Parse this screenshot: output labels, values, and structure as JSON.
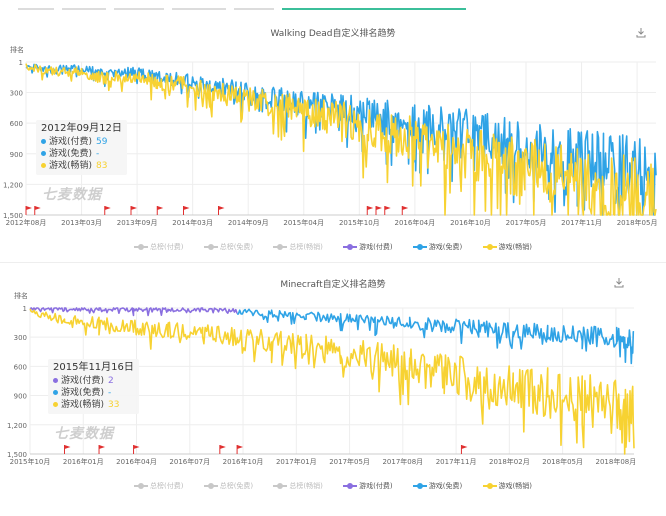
{
  "colors": {
    "paid_purple": "#8a6fe0",
    "free_blue": "#2fa3e6",
    "grossing_yellow": "#f7d232",
    "disabled_grey": "#c8c8c8",
    "grid": "#eeeeee",
    "flag_red": "#e03030",
    "tab_active": "#3bbf9a"
  },
  "tabs": [
    "",
    "",
    "",
    "",
    "",
    ""
  ],
  "charts": [
    {
      "title": "Walking Dead自定义排名趋势",
      "ylabel": "排名",
      "watermark": "七麦数据",
      "tooltip": {
        "date": "2012年09月12日",
        "rows": [
          {
            "label": "游戏(付费)",
            "value": "59",
            "color": "#2fa3e6"
          },
          {
            "label": "游戏(免费)",
            "value": "-",
            "color": "#2fa3e6"
          },
          {
            "label": "游戏(畅销)",
            "value": "83",
            "color": "#f7d232"
          }
        ]
      },
      "legend": [
        {
          "label": "总榜(付费)",
          "color": "#c8c8c8",
          "active": false
        },
        {
          "label": "总榜(免费)",
          "color": "#c8c8c8",
          "active": false
        },
        {
          "label": "总榜(畅销)",
          "color": "#c8c8c8",
          "active": false
        },
        {
          "label": "游戏(付费)",
          "color": "#8a6fe0",
          "active": true
        },
        {
          "label": "游戏(免费)",
          "color": "#2fa3e6",
          "active": true
        },
        {
          "label": "游戏(畅销)",
          "color": "#f7d232",
          "active": true
        }
      ]
    },
    {
      "title": "Minecraft自定义排名趋势",
      "ylabel": "排名",
      "watermark": "七麦数据",
      "tooltip": {
        "date": "2015年11月16日",
        "rows": [
          {
            "label": "游戏(付费)",
            "value": "2",
            "color": "#8a6fe0"
          },
          {
            "label": "游戏(免费)",
            "value": "-",
            "color": "#2fa3e6"
          },
          {
            "label": "游戏(畅销)",
            "value": "33",
            "color": "#f7d232"
          }
        ]
      },
      "legend": [
        {
          "label": "总榜(付费)",
          "color": "#c8c8c8",
          "active": false
        },
        {
          "label": "总榜(免费)",
          "color": "#c8c8c8",
          "active": false
        },
        {
          "label": "总榜(畅销)",
          "color": "#c8c8c8",
          "active": false
        },
        {
          "label": "游戏(付费)",
          "color": "#8a6fe0",
          "active": true
        },
        {
          "label": "游戏(免费)",
          "color": "#2fa3e6",
          "active": true
        },
        {
          "label": "游戏(畅销)",
          "color": "#f7d232",
          "active": true
        }
      ]
    }
  ],
  "chart_data": [
    {
      "type": "line",
      "title": "Walking Dead自定义排名趋势",
      "ylabel": "排名",
      "y_inverted": true,
      "ylim": [
        1,
        1500
      ],
      "y_ticks": [
        "1",
        "300",
        "600",
        "900",
        "1,200",
        "1,500"
      ],
      "y_tick_values": [
        1,
        300,
        600,
        900,
        1200,
        1500
      ],
      "x_ticks": [
        "2012年08月",
        "2013年03月",
        "2013年09月",
        "2014年03月",
        "2014年09月",
        "2015年04月",
        "2015年10月",
        "2016年04月",
        "2016年10月",
        "2017年05月",
        "2017年11月",
        "2018年05月"
      ],
      "x": [
        "2012-08",
        "2012-11",
        "2013-02",
        "2013-05",
        "2013-08",
        "2013-11",
        "2014-02",
        "2014-05",
        "2014-08",
        "2014-11",
        "2015-02",
        "2015-05",
        "2015-08",
        "2015-11",
        "2016-02",
        "2016-05",
        "2016-08",
        "2016-11",
        "2017-02",
        "2017-05",
        "2017-08",
        "2017-11",
        "2018-02",
        "2018-05",
        "2018-08"
      ],
      "series": [
        {
          "name": "游戏(免费)",
          "color": "#2fa3e6",
          "values": [
            30,
            80,
            60,
            120,
            90,
            150,
            160,
            230,
            280,
            330,
            380,
            420,
            450,
            520,
            560,
            600,
            640,
            680,
            760,
            820,
            880,
            920,
            980,
            1020,
            1150
          ]
        },
        {
          "name": "游戏(畅销)",
          "color": "#f7d232",
          "values": [
            40,
            100,
            90,
            160,
            140,
            200,
            220,
            290,
            340,
            400,
            450,
            520,
            560,
            640,
            700,
            780,
            850,
            900,
            1000,
            1060,
            1120,
            1180,
            1250,
            1300,
            1380
          ]
        }
      ],
      "markers": [
        "2012-08",
        "2012-09",
        "2013-05",
        "2013-08",
        "2013-11",
        "2014-02",
        "2014-06",
        "2015-11",
        "2015-12",
        "2016-01",
        "2016-03"
      ],
      "grid": true,
      "legend_position": "bottom"
    },
    {
      "type": "line",
      "title": "Minecraft自定义排名趋势",
      "ylabel": "排名",
      "y_inverted": true,
      "ylim": [
        1,
        1500
      ],
      "y_ticks": [
        "1",
        "300",
        "600",
        "900",
        "1,200",
        "1,500"
      ],
      "y_tick_values": [
        1,
        300,
        600,
        900,
        1200,
        1500
      ],
      "x_ticks": [
        "2015年10月",
        "2016年01月",
        "2016年04月",
        "2016年07月",
        "2016年10月",
        "2017年01月",
        "2017年05月",
        "2017年08月",
        "2017年11月",
        "2018年02月",
        "2018年05月",
        "2018年08月"
      ],
      "x": [
        "2015-10",
        "2015-12",
        "2016-02",
        "2016-04",
        "2016-06",
        "2016-08",
        "2016-10",
        "2016-12",
        "2017-02",
        "2017-04",
        "2017-06",
        "2017-08",
        "2017-10",
        "2017-12",
        "2018-02",
        "2018-04",
        "2018-06",
        "2018-08",
        "2018-09"
      ],
      "series": [
        {
          "name": "游戏(付费)",
          "color": "#8a6fe0",
          "values": [
            2,
            5,
            10,
            15,
            20,
            25,
            30,
            null,
            null,
            null,
            null,
            null,
            null,
            null,
            null,
            null,
            null,
            null,
            null
          ]
        },
        {
          "name": "游戏(免费)",
          "color": "#2fa3e6",
          "values": [
            null,
            null,
            null,
            null,
            null,
            null,
            40,
            60,
            80,
            110,
            140,
            160,
            180,
            200,
            230,
            260,
            280,
            300,
            360
          ]
        },
        {
          "name": "游戏(畅销)",
          "color": "#f7d232",
          "values": [
            33,
            120,
            160,
            200,
            230,
            260,
            300,
            340,
            400,
            450,
            500,
            600,
            680,
            760,
            820,
            880,
            950,
            1050,
            1150
          ]
        }
      ],
      "markers": [
        "2015-12",
        "2016-02",
        "2016-04",
        "2016-09",
        "2016-10",
        "2017-11"
      ],
      "grid": true,
      "legend_position": "bottom"
    }
  ]
}
